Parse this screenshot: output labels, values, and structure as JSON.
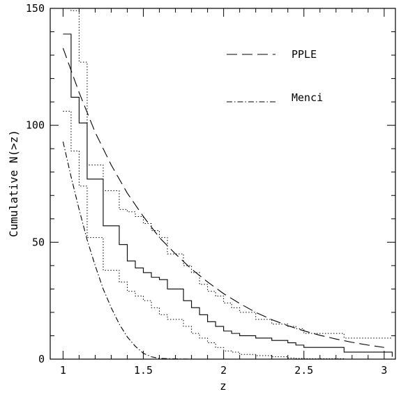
{
  "chart_data": {
    "type": "line",
    "xlabel": "z",
    "ylabel": "Cumulative N(>z)",
    "xlim": [
      0.92,
      3.07
    ],
    "ylim": [
      0,
      150
    ],
    "xticks": [
      1,
      1.5,
      2,
      2.5,
      3
    ],
    "xtick_labels": [
      "1",
      "1.5",
      "2",
      "2.5",
      "3"
    ],
    "yticks": [
      0,
      50,
      100,
      150
    ],
    "ytick_labels": [
      "0",
      "50",
      "100",
      "150"
    ],
    "legend_position": "top-right",
    "series": [
      {
        "name": "",
        "style": "solid-step",
        "x": [
          1.0,
          1.05,
          1.1,
          1.15,
          1.25,
          1.35,
          1.4,
          1.45,
          1.5,
          1.55,
          1.6,
          1.65,
          1.75,
          1.8,
          1.85,
          1.9,
          1.95,
          2.0,
          2.05,
          2.1,
          2.2,
          2.3,
          2.4,
          2.45,
          2.5,
          2.75,
          3.05
        ],
        "values": [
          139,
          112,
          101,
          77,
          57,
          49,
          42,
          39,
          37,
          35,
          34,
          30,
          25,
          22,
          19,
          16,
          14,
          12,
          11,
          10,
          9,
          8,
          7,
          6,
          5,
          3,
          1
        ]
      },
      {
        "name": "",
        "style": "dotted-step",
        "x": [
          1.0,
          1.05,
          1.1,
          1.15,
          1.25,
          1.35,
          1.4,
          1.45,
          1.5,
          1.55,
          1.6,
          1.65,
          1.75,
          1.8,
          1.85,
          1.9,
          1.95,
          2.0,
          2.05,
          2.1,
          2.2,
          2.3,
          2.4,
          2.45,
          2.5,
          2.75,
          3.05
        ],
        "values": [
          165,
          149,
          127,
          83,
          72,
          64,
          63,
          61,
          58,
          55,
          52,
          45,
          40,
          37,
          32,
          29,
          27,
          24,
          22,
          20,
          17,
          15,
          14,
          13,
          11,
          9,
          9
        ]
      },
      {
        "name": "",
        "style": "dotted-step",
        "x": [
          1.0,
          1.05,
          1.1,
          1.15,
          1.25,
          1.35,
          1.4,
          1.45,
          1.5,
          1.55,
          1.6,
          1.65,
          1.75,
          1.8,
          1.85,
          1.9,
          1.95,
          2.0,
          2.05,
          2.1,
          2.2,
          2.3,
          2.4,
          2.45,
          2.5,
          2.75,
          3.05
        ],
        "values": [
          106,
          89,
          74,
          52,
          38,
          33,
          29,
          27,
          25,
          22,
          19,
          17,
          14,
          11,
          9,
          7,
          5,
          3.5,
          3,
          2,
          1.5,
          1,
          0.5,
          0.3,
          0.2,
          0,
          0
        ]
      },
      {
        "name": "PPLE",
        "style": "dashed",
        "x": [
          1.0,
          1.1,
          1.2,
          1.3,
          1.4,
          1.5,
          1.6,
          1.7,
          1.8,
          1.9,
          2.0,
          2.1,
          2.2,
          2.3,
          2.4,
          2.5,
          2.6,
          2.7,
          2.8,
          2.9,
          3.0
        ],
        "values": [
          133,
          114,
          97,
          83,
          71,
          61,
          52,
          45,
          38.5,
          33,
          28,
          23.8,
          20,
          16.9,
          14.3,
          12.1,
          10.2,
          8.6,
          7.2,
          6.0,
          5.0
        ]
      },
      {
        "name": "Menci",
        "style": "dashdot",
        "x": [
          1.0,
          1.05,
          1.1,
          1.15,
          1.2,
          1.25,
          1.3,
          1.35,
          1.4,
          1.45,
          1.5,
          1.55,
          1.6,
          1.7,
          1.8,
          2.0,
          2.5,
          3.0
        ],
        "values": [
          93,
          78,
          64,
          51,
          40,
          30,
          22,
          15,
          9.5,
          5.5,
          2.5,
          1.0,
          0.3,
          0.1,
          0,
          0,
          0,
          0
        ]
      }
    ]
  }
}
